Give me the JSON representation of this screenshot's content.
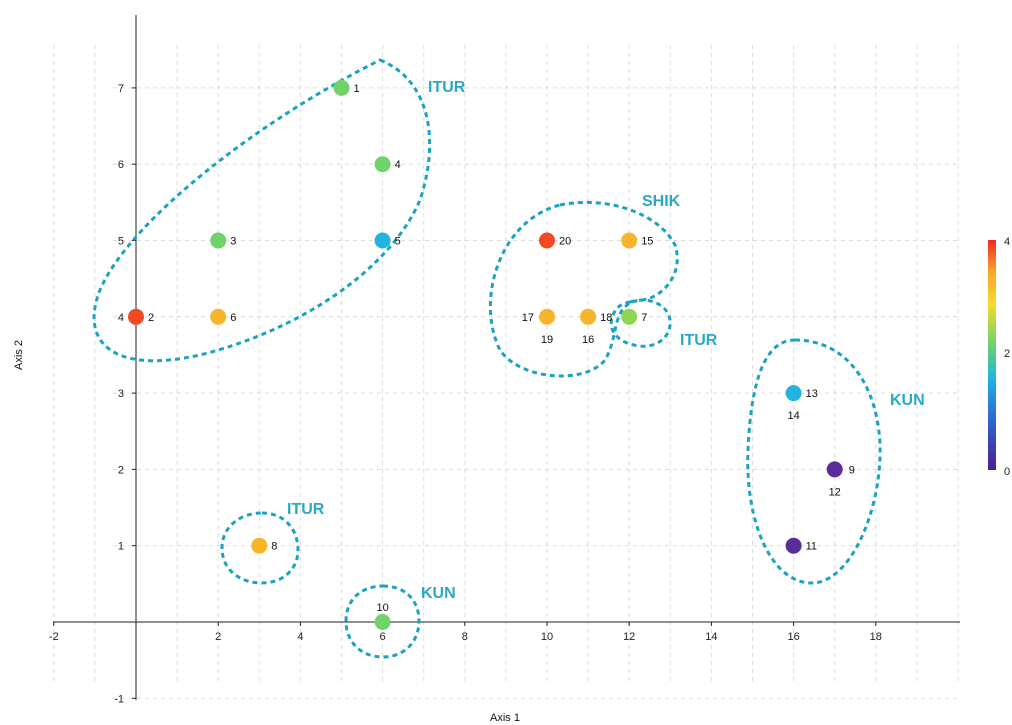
{
  "chart_data": {
    "type": "scatter",
    "title": "",
    "xlabel": "Axis 1",
    "ylabel": "Axis 2",
    "xlim": [
      -2,
      20
    ],
    "ylim": [
      -1,
      8
    ],
    "xticks": [
      "-2",
      "2",
      "4",
      "6",
      "8",
      "10",
      "12",
      "14",
      "16",
      "18"
    ],
    "yticks": [
      "-1",
      "1",
      "2",
      "3",
      "4",
      "5",
      "6",
      "7"
    ],
    "grid": true,
    "colorbar": {
      "min": 0,
      "max": 4,
      "labels": [
        "4",
        "2",
        "0"
      ]
    },
    "points": [
      {
        "x": 5,
        "y": 7,
        "label": "1",
        "color": "#6fd36a"
      },
      {
        "x": 0,
        "y": 4,
        "label": "2",
        "color": "#ef4a24"
      },
      {
        "x": 2,
        "y": 5,
        "label": "3",
        "color": "#6fd36a"
      },
      {
        "x": 6,
        "y": 6,
        "label": "4",
        "color": "#6fd36a"
      },
      {
        "x": 6,
        "y": 5,
        "label": "5",
        "color": "#22b4e0"
      },
      {
        "x": 2,
        "y": 4,
        "label": "6",
        "color": "#f7b52c"
      },
      {
        "x": 12,
        "y": 4,
        "label": "7",
        "color": "#8ed651"
      },
      {
        "x": 3,
        "y": 1,
        "label": "8",
        "color": "#f7b52c"
      },
      {
        "x": 17,
        "y": 2,
        "label": "9",
        "color": "#5a2d9b"
      },
      {
        "x": 6,
        "y": 0,
        "label": "10",
        "color": "#6fd36a"
      },
      {
        "x": 16,
        "y": 1,
        "label": "11",
        "color": "#5a2d9b"
      },
      {
        "x": 17,
        "y": 2,
        "label": "12",
        "color": "#5a2d9b"
      },
      {
        "x": 16,
        "y": 3,
        "label": "13",
        "color": "#22b4e0"
      },
      {
        "x": 16,
        "y": 3,
        "label": "14",
        "color": "#22b4e0"
      },
      {
        "x": 12,
        "y": 5,
        "label": "15",
        "color": "#f7b52c"
      },
      {
        "x": 11,
        "y": 4,
        "label": "16",
        "color": "#f7b52c"
      },
      {
        "x": 10,
        "y": 4,
        "label": "17",
        "color": "#f7b52c"
      },
      {
        "x": 11,
        "y": 4,
        "label": "18",
        "color": "#f7b52c"
      },
      {
        "x": 10,
        "y": 4,
        "label": "19",
        "color": "#f7b52c"
      },
      {
        "x": 10,
        "y": 5,
        "label": "20",
        "color": "#ef4a24"
      }
    ],
    "groups": [
      {
        "label": "ITUR"
      },
      {
        "label": "SHIK"
      },
      {
        "label": "ITUR"
      },
      {
        "label": "KUN"
      },
      {
        "label": "ITUR"
      },
      {
        "label": "KUN"
      }
    ]
  }
}
